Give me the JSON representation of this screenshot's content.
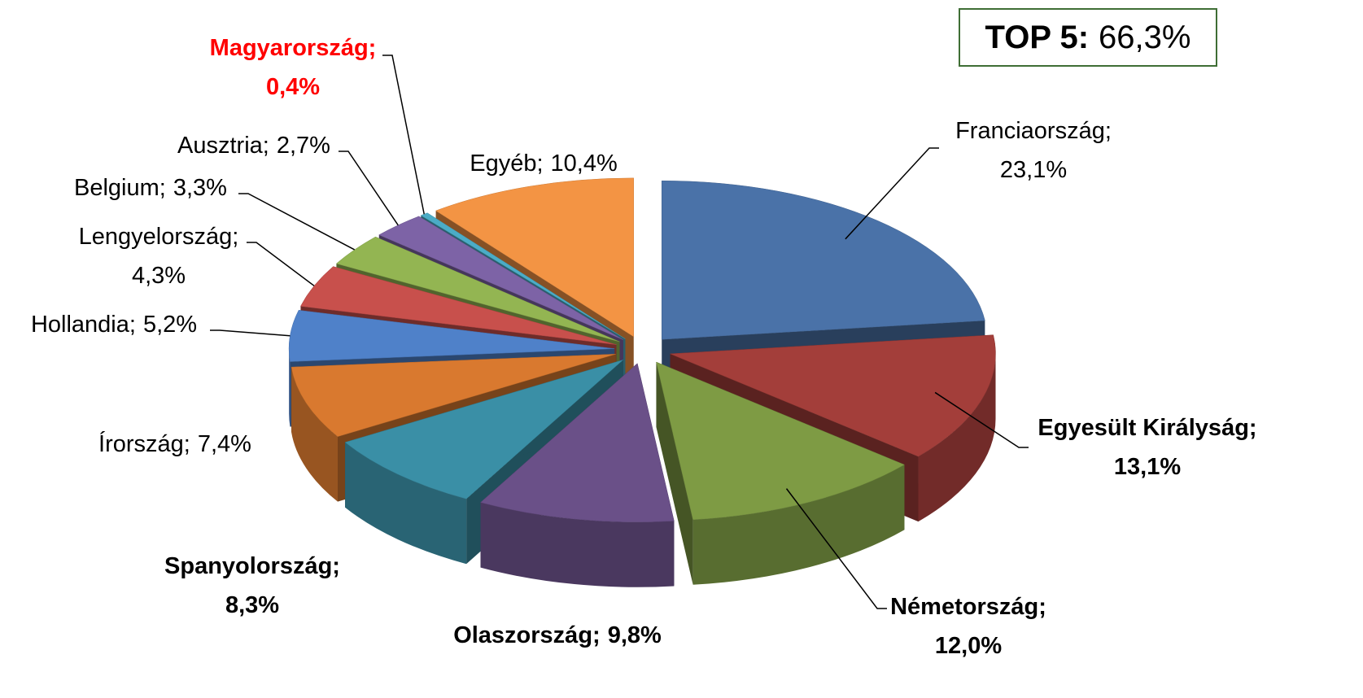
{
  "chart_data": {
    "type": "pie3d",
    "categories": [
      "Franciaország",
      "Egyesült Királyság",
      "Németország",
      "Olaszország",
      "Spanyolország",
      "Írország",
      "Hollandia",
      "Lengyelország",
      "Belgium",
      "Ausztria",
      "Magyarország",
      "Egyéb"
    ],
    "values": [
      23.1,
      13.1,
      12.0,
      9.8,
      8.3,
      7.4,
      5.2,
      4.3,
      3.3,
      2.7,
      0.4,
      10.4
    ],
    "value_labels": [
      "23,1%",
      "13,1%",
      "12,0%",
      "9,8%",
      "8,3%",
      "7,4%",
      "5,2%",
      "4,3%",
      "3,3%",
      "2,7%",
      "0,4%",
      "10,4%"
    ],
    "label_separator": ";",
    "colors": [
      "#4a72a8",
      "#a33e3a",
      "#7e9b44",
      "#6a5088",
      "#3a8fa6",
      "#d9792f",
      "#4f81c9",
      "#c8504c",
      "#93b552",
      "#7d63a6",
      "#4bacc6",
      "#f39444"
    ],
    "annotation": {
      "label": "TOP 5:",
      "value": 66.3,
      "value_label": "66,3%"
    }
  }
}
